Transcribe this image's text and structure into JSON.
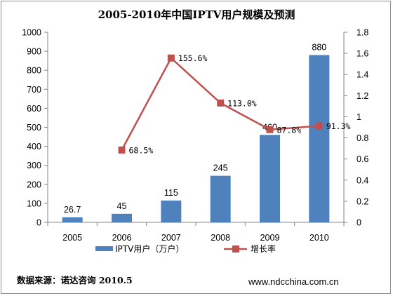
{
  "chart_data": {
    "type": "bar",
    "title": "2005-2010年中国IPTV用户规模及预测",
    "categories": [
      "2005",
      "2006",
      "2007",
      "2008",
      "2009",
      "2010"
    ],
    "series": [
      {
        "name": "IPTV用户（万户）",
        "type": "bar",
        "axis": "left",
        "color": "#4f81bd",
        "values": [
          26.7,
          45,
          115,
          245,
          460,
          880
        ],
        "labels": [
          "26.7",
          "45",
          "115",
          "245",
          "460",
          "880"
        ]
      },
      {
        "name": "增长率",
        "type": "line",
        "axis": "right",
        "color": "#c0504d",
        "values": [
          null,
          0.685,
          1.556,
          1.13,
          0.878,
          0.913
        ],
        "labels": [
          "",
          "68.5%",
          "155.6%",
          "113.0%",
          "87.8%",
          "91.3%"
        ]
      }
    ],
    "y_left": {
      "min": 0,
      "max": 1000,
      "ticks": [
        "0",
        "100",
        "200",
        "300",
        "400",
        "500",
        "600",
        "700",
        "800",
        "900",
        "1000"
      ]
    },
    "y_right": {
      "min": 0,
      "max": 1.8,
      "ticks": [
        "0",
        "0.2",
        "0.4",
        "0.6",
        "0.8",
        "1",
        "1.2",
        "1.4",
        "1.6",
        "1.8"
      ]
    },
    "grid": false,
    "legend_position": "bottom"
  },
  "footer": {
    "source": "数据来源：诺达咨询 2010.5",
    "website": "www.ndcchina.com.cn"
  }
}
